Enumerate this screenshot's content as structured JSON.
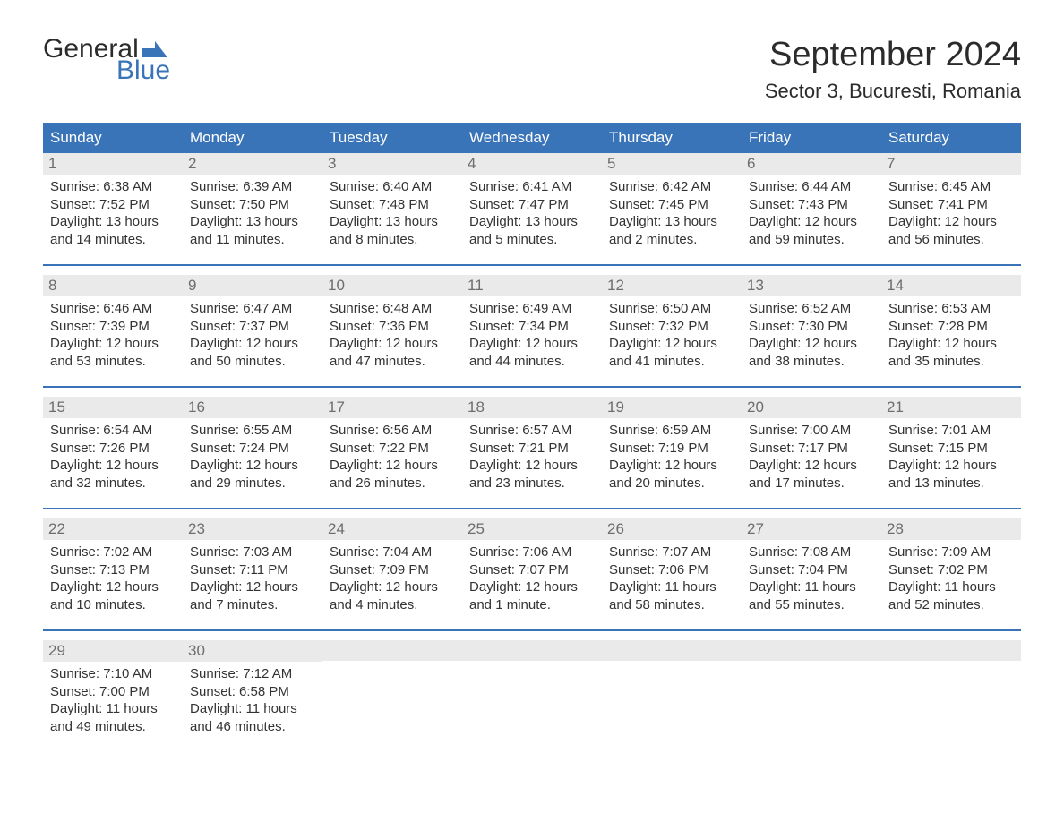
{
  "logo": {
    "word1": "General",
    "word2": "Blue",
    "flag_color": "#3a74b8"
  },
  "title": "September 2024",
  "location": "Sector 3, Bucuresti, Romania",
  "colors": {
    "header_bg": "#3a74b8",
    "header_text": "#ffffff",
    "daynum_bg": "#eaeaea",
    "daynum_text": "#6d6d6d",
    "body_text": "#333333",
    "separator": "#3a74b8",
    "page_bg": "#ffffff"
  },
  "typography": {
    "title_fontsize": 38,
    "location_fontsize": 22,
    "header_fontsize": 17,
    "daynum_fontsize": 17,
    "body_fontsize": 15
  },
  "layout": {
    "columns": 7,
    "rows": 5
  },
  "day_headers": [
    "Sunday",
    "Monday",
    "Tuesday",
    "Wednesday",
    "Thursday",
    "Friday",
    "Saturday"
  ],
  "weeks": [
    [
      {
        "n": "1",
        "sunrise": "Sunrise: 6:38 AM",
        "sunset": "Sunset: 7:52 PM",
        "d1": "Daylight: 13 hours",
        "d2": "and 14 minutes."
      },
      {
        "n": "2",
        "sunrise": "Sunrise: 6:39 AM",
        "sunset": "Sunset: 7:50 PM",
        "d1": "Daylight: 13 hours",
        "d2": "and 11 minutes."
      },
      {
        "n": "3",
        "sunrise": "Sunrise: 6:40 AM",
        "sunset": "Sunset: 7:48 PM",
        "d1": "Daylight: 13 hours",
        "d2": "and 8 minutes."
      },
      {
        "n": "4",
        "sunrise": "Sunrise: 6:41 AM",
        "sunset": "Sunset: 7:47 PM",
        "d1": "Daylight: 13 hours",
        "d2": "and 5 minutes."
      },
      {
        "n": "5",
        "sunrise": "Sunrise: 6:42 AM",
        "sunset": "Sunset: 7:45 PM",
        "d1": "Daylight: 13 hours",
        "d2": "and 2 minutes."
      },
      {
        "n": "6",
        "sunrise": "Sunrise: 6:44 AM",
        "sunset": "Sunset: 7:43 PM",
        "d1": "Daylight: 12 hours",
        "d2": "and 59 minutes."
      },
      {
        "n": "7",
        "sunrise": "Sunrise: 6:45 AM",
        "sunset": "Sunset: 7:41 PM",
        "d1": "Daylight: 12 hours",
        "d2": "and 56 minutes."
      }
    ],
    [
      {
        "n": "8",
        "sunrise": "Sunrise: 6:46 AM",
        "sunset": "Sunset: 7:39 PM",
        "d1": "Daylight: 12 hours",
        "d2": "and 53 minutes."
      },
      {
        "n": "9",
        "sunrise": "Sunrise: 6:47 AM",
        "sunset": "Sunset: 7:37 PM",
        "d1": "Daylight: 12 hours",
        "d2": "and 50 minutes."
      },
      {
        "n": "10",
        "sunrise": "Sunrise: 6:48 AM",
        "sunset": "Sunset: 7:36 PM",
        "d1": "Daylight: 12 hours",
        "d2": "and 47 minutes."
      },
      {
        "n": "11",
        "sunrise": "Sunrise: 6:49 AM",
        "sunset": "Sunset: 7:34 PM",
        "d1": "Daylight: 12 hours",
        "d2": "and 44 minutes."
      },
      {
        "n": "12",
        "sunrise": "Sunrise: 6:50 AM",
        "sunset": "Sunset: 7:32 PM",
        "d1": "Daylight: 12 hours",
        "d2": "and 41 minutes."
      },
      {
        "n": "13",
        "sunrise": "Sunrise: 6:52 AM",
        "sunset": "Sunset: 7:30 PM",
        "d1": "Daylight: 12 hours",
        "d2": "and 38 minutes."
      },
      {
        "n": "14",
        "sunrise": "Sunrise: 6:53 AM",
        "sunset": "Sunset: 7:28 PM",
        "d1": "Daylight: 12 hours",
        "d2": "and 35 minutes."
      }
    ],
    [
      {
        "n": "15",
        "sunrise": "Sunrise: 6:54 AM",
        "sunset": "Sunset: 7:26 PM",
        "d1": "Daylight: 12 hours",
        "d2": "and 32 minutes."
      },
      {
        "n": "16",
        "sunrise": "Sunrise: 6:55 AM",
        "sunset": "Sunset: 7:24 PM",
        "d1": "Daylight: 12 hours",
        "d2": "and 29 minutes."
      },
      {
        "n": "17",
        "sunrise": "Sunrise: 6:56 AM",
        "sunset": "Sunset: 7:22 PM",
        "d1": "Daylight: 12 hours",
        "d2": "and 26 minutes."
      },
      {
        "n": "18",
        "sunrise": "Sunrise: 6:57 AM",
        "sunset": "Sunset: 7:21 PM",
        "d1": "Daylight: 12 hours",
        "d2": "and 23 minutes."
      },
      {
        "n": "19",
        "sunrise": "Sunrise: 6:59 AM",
        "sunset": "Sunset: 7:19 PM",
        "d1": "Daylight: 12 hours",
        "d2": "and 20 minutes."
      },
      {
        "n": "20",
        "sunrise": "Sunrise: 7:00 AM",
        "sunset": "Sunset: 7:17 PM",
        "d1": "Daylight: 12 hours",
        "d2": "and 17 minutes."
      },
      {
        "n": "21",
        "sunrise": "Sunrise: 7:01 AM",
        "sunset": "Sunset: 7:15 PM",
        "d1": "Daylight: 12 hours",
        "d2": "and 13 minutes."
      }
    ],
    [
      {
        "n": "22",
        "sunrise": "Sunrise: 7:02 AM",
        "sunset": "Sunset: 7:13 PM",
        "d1": "Daylight: 12 hours",
        "d2": "and 10 minutes."
      },
      {
        "n": "23",
        "sunrise": "Sunrise: 7:03 AM",
        "sunset": "Sunset: 7:11 PM",
        "d1": "Daylight: 12 hours",
        "d2": "and 7 minutes."
      },
      {
        "n": "24",
        "sunrise": "Sunrise: 7:04 AM",
        "sunset": "Sunset: 7:09 PM",
        "d1": "Daylight: 12 hours",
        "d2": "and 4 minutes."
      },
      {
        "n": "25",
        "sunrise": "Sunrise: 7:06 AM",
        "sunset": "Sunset: 7:07 PM",
        "d1": "Daylight: 12 hours",
        "d2": "and 1 minute."
      },
      {
        "n": "26",
        "sunrise": "Sunrise: 7:07 AM",
        "sunset": "Sunset: 7:06 PM",
        "d1": "Daylight: 11 hours",
        "d2": "and 58 minutes."
      },
      {
        "n": "27",
        "sunrise": "Sunrise: 7:08 AM",
        "sunset": "Sunset: 7:04 PM",
        "d1": "Daylight: 11 hours",
        "d2": "and 55 minutes."
      },
      {
        "n": "28",
        "sunrise": "Sunrise: 7:09 AM",
        "sunset": "Sunset: 7:02 PM",
        "d1": "Daylight: 11 hours",
        "d2": "and 52 minutes."
      }
    ],
    [
      {
        "n": "29",
        "sunrise": "Sunrise: 7:10 AM",
        "sunset": "Sunset: 7:00 PM",
        "d1": "Daylight: 11 hours",
        "d2": "and 49 minutes."
      },
      {
        "n": "30",
        "sunrise": "Sunrise: 7:12 AM",
        "sunset": "Sunset: 6:58 PM",
        "d1": "Daylight: 11 hours",
        "d2": "and 46 minutes."
      },
      {
        "n": "",
        "sunrise": "",
        "sunset": "",
        "d1": "",
        "d2": ""
      },
      {
        "n": "",
        "sunrise": "",
        "sunset": "",
        "d1": "",
        "d2": ""
      },
      {
        "n": "",
        "sunrise": "",
        "sunset": "",
        "d1": "",
        "d2": ""
      },
      {
        "n": "",
        "sunrise": "",
        "sunset": "",
        "d1": "",
        "d2": ""
      },
      {
        "n": "",
        "sunrise": "",
        "sunset": "",
        "d1": "",
        "d2": ""
      }
    ]
  ]
}
